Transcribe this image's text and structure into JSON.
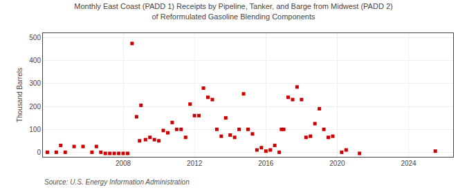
{
  "chart_data": {
    "type": "scatter",
    "title": "Monthly East Coast (PADD 1) Receipts by Pipeline, Tanker, and Barge from Midwest (PADD 2)\nof Reformulated Gasoline Blending Components",
    "ylabel": "Thousand Barrels",
    "annotations": [
      "Source: U.S. Energy Information Administration"
    ],
    "color": "#cc0000",
    "marker": "square",
    "grid": true,
    "xlim": [
      2003.5,
      2026.5
    ],
    "ylim": [
      -20,
      520
    ],
    "xticks": [
      2008,
      2012,
      2016,
      2020,
      2024
    ],
    "yticks": [
      0,
      100,
      200,
      300,
      400,
      500
    ],
    "x": [
      2003.75,
      2004.25,
      2004.5,
      2004.75,
      2005.25,
      2005.75,
      2006.25,
      2006.5,
      2006.75,
      2007.0,
      2007.25,
      2007.5,
      2007.75,
      2008.0,
      2008.25,
      2008.5,
      2008.75,
      2008.92,
      2009.0,
      2009.25,
      2009.5,
      2009.75,
      2010.0,
      2010.25,
      2010.5,
      2010.75,
      2011.0,
      2011.25,
      2011.5,
      2011.75,
      2012.0,
      2012.25,
      2012.5,
      2012.75,
      2013.0,
      2013.25,
      2013.5,
      2013.75,
      2014.0,
      2014.25,
      2014.5,
      2014.75,
      2015.0,
      2015.25,
      2015.5,
      2015.75,
      2016.0,
      2016.25,
      2016.5,
      2016.75,
      2016.875,
      2017.0,
      2017.25,
      2017.5,
      2017.75,
      2018.0,
      2018.25,
      2018.5,
      2018.75,
      2019.0,
      2019.25,
      2019.5,
      2019.75,
      2020.25,
      2020.5,
      2021.25,
      2025.5
    ],
    "values": [
      0,
      0,
      30,
      0,
      25,
      25,
      0,
      25,
      0,
      -5,
      -5,
      -5,
      -5,
      -5,
      -5,
      475,
      155,
      50,
      205,
      55,
      65,
      55,
      50,
      95,
      85,
      130,
      100,
      100,
      65,
      210,
      160,
      160,
      280,
      240,
      230,
      100,
      70,
      150,
      75,
      65,
      100,
      255,
      100,
      80,
      10,
      20,
      5,
      10,
      30,
      0,
      100,
      100,
      240,
      230,
      285,
      230,
      65,
      70,
      125,
      190,
      100,
      65,
      70,
      0,
      10,
      -5,
      5
    ]
  }
}
